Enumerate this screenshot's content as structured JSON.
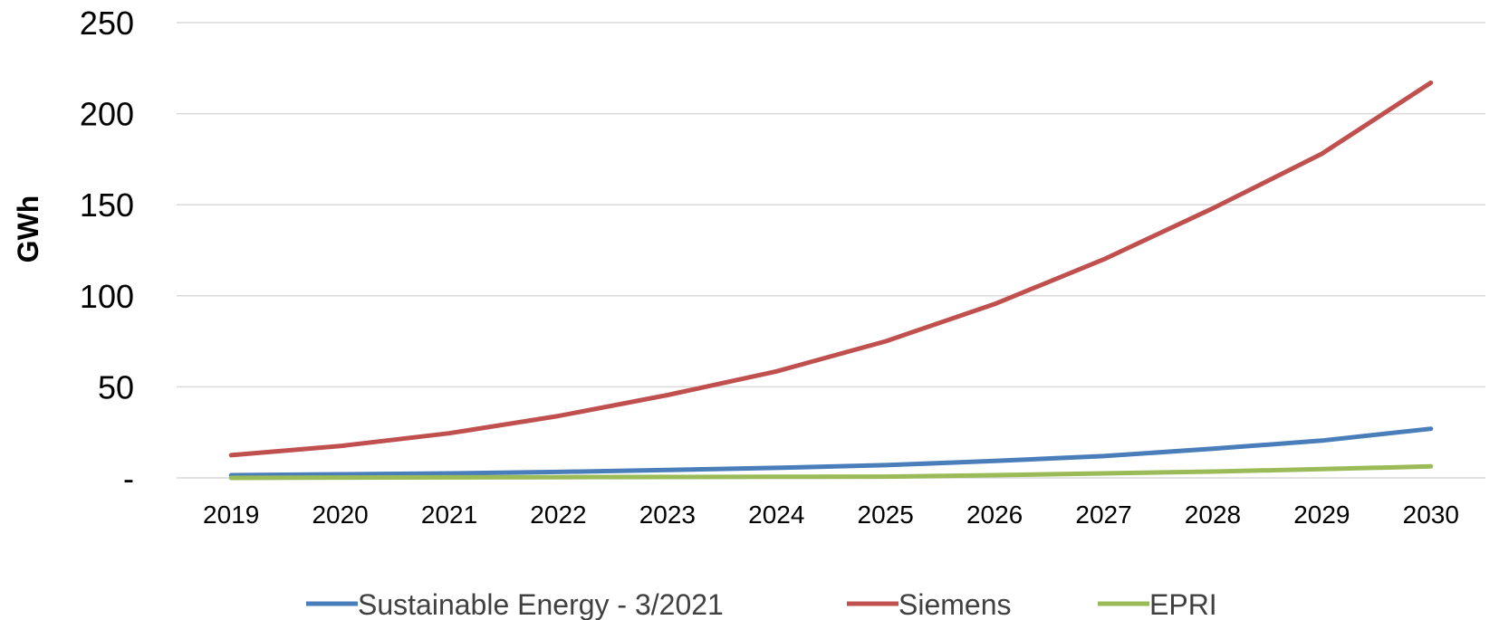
{
  "chart_data": {
    "type": "line",
    "x": [
      "2019",
      "2020",
      "2021",
      "2022",
      "2023",
      "2024",
      "2025",
      "2026",
      "2027",
      "2028",
      "2029",
      "2030"
    ],
    "ylabel": "GWh",
    "ylim": [
      0,
      250
    ],
    "yticks": [
      {
        "value": 0,
        "label": "-"
      },
      {
        "value": 50,
        "label": "50"
      },
      {
        "value": 100,
        "label": "100"
      },
      {
        "value": 150,
        "label": "150"
      },
      {
        "value": 200,
        "label": "200"
      },
      {
        "value": 250,
        "label": "250"
      }
    ],
    "grid": true,
    "legend": "bottom",
    "series": [
      {
        "name": "Sustainable Energy - 3/2021",
        "color": "#4a7ebb",
        "values": [
          1.5,
          2,
          2.5,
          3.3,
          4.3,
          5.5,
          7,
          9.3,
          12,
          16,
          20.5,
          27
        ]
      },
      {
        "name": "Siemens",
        "color": "#c0504d",
        "values": [
          12.5,
          17.5,
          24.5,
          34,
          45.5,
          58.5,
          75,
          95.5,
          120,
          148,
          178,
          217
        ]
      },
      {
        "name": "EPRI",
        "color": "#9bbb59",
        "values": [
          0,
          0.2,
          0.3,
          0.4,
          0.5,
          0.6,
          0.7,
          1.5,
          2.5,
          3.5,
          4.8,
          6.3
        ]
      }
    ]
  }
}
